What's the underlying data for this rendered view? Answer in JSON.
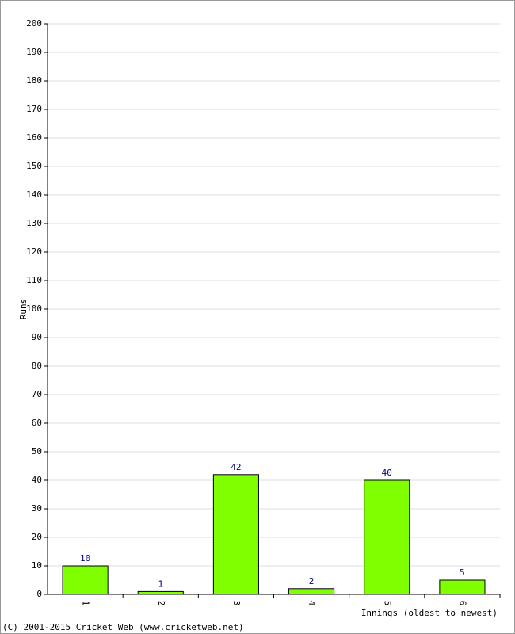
{
  "chart_data": {
    "type": "bar",
    "y_label": "Runs",
    "x_label": "Innings (oldest to newest)",
    "footer": "(C) 2001-2015 Cricket Web (www.cricketweb.net)",
    "categories": [
      "1",
      "2",
      "3",
      "4",
      "5",
      "6"
    ],
    "values": [
      10,
      1,
      42,
      2,
      40,
      5
    ],
    "color": "#80ff00",
    "label_color": "#000080",
    "ylim": [
      0,
      200
    ],
    "yticks": [
      0,
      10,
      20,
      30,
      40,
      50,
      60,
      70,
      80,
      90,
      100,
      110,
      120,
      130,
      140,
      150,
      160,
      170,
      180,
      190,
      200
    ],
    "grid": true
  }
}
